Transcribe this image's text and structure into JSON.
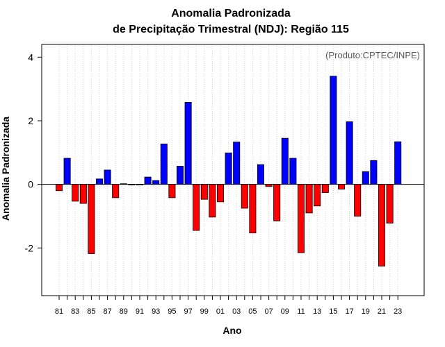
{
  "chart_data": {
    "type": "bar",
    "title": "Anomalia Padronizada",
    "subtitle": "de Precipitação Trimestral (NDJ): Região 115",
    "xlabel": "Ano",
    "ylabel": "Anomalia Padronizada",
    "credit": "(Produto:CPTEC/INPE)",
    "ylim": [
      -3.5,
      4.4
    ],
    "yticks": [
      -2,
      0,
      2,
      4
    ],
    "yticks_labels": [
      "-2",
      "0",
      "2",
      "4"
    ],
    "x": [
      1981,
      1982,
      1983,
      1984,
      1985,
      1986,
      1987,
      1988,
      1989,
      1990,
      1991,
      1992,
      1993,
      1994,
      1995,
      1996,
      1997,
      1998,
      1999,
      2000,
      2001,
      2002,
      2003,
      2004,
      2005,
      2006,
      2007,
      2008,
      2009,
      2010,
      2011,
      2012,
      2013,
      2014,
      2015,
      2016,
      2017,
      2018,
      2019,
      2020,
      2021,
      2022,
      2023
    ],
    "xtick_labels": [
      "81",
      "83",
      "85",
      "87",
      "89",
      "91",
      "93",
      "95",
      "97",
      "99",
      "01",
      "03",
      "05",
      "07",
      "09",
      "11",
      "13",
      "15",
      "17",
      "19",
      "21",
      "23"
    ],
    "values": [
      -0.2,
      0.82,
      -0.53,
      -0.6,
      -2.18,
      0.17,
      0.45,
      -0.42,
      0.02,
      -0.02,
      0.0,
      0.23,
      0.12,
      1.27,
      -0.42,
      0.57,
      2.58,
      -1.45,
      -0.47,
      -1.03,
      -0.55,
      0.99,
      1.33,
      -0.75,
      -1.53,
      0.62,
      -0.07,
      -1.15,
      1.45,
      0.82,
      -2.15,
      -0.9,
      -0.68,
      -0.26,
      3.4,
      -0.15,
      1.97,
      -1.0,
      0.4,
      0.75,
      -2.57,
      -1.22,
      1.34
    ],
    "colors": {
      "positive": "#0000ff",
      "negative": "#ff0000",
      "grid": "#d0d0d0",
      "frame": "#000000"
    },
    "grid": true
  }
}
